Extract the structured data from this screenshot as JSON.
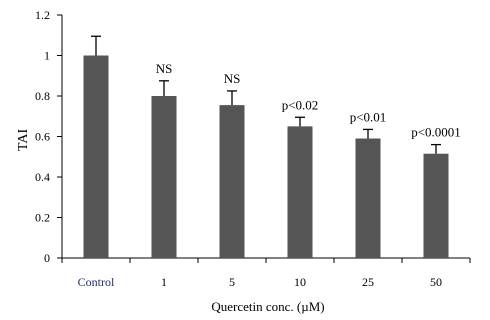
{
  "chart_data": {
    "type": "bar",
    "title": "",
    "xlabel": "Quercetin conc. (µM)",
    "ylabel": "TAI",
    "ylim": [
      0,
      1.2
    ],
    "yticks": [
      0,
      0.2,
      0.4,
      0.6,
      0.8,
      1,
      1.2
    ],
    "ytick_labels": [
      "0",
      "0.2",
      "0.4",
      "0.6",
      "0.8",
      "1",
      "1.2"
    ],
    "categories": [
      "Control",
      "1",
      "5",
      "10",
      "25",
      "50"
    ],
    "values": [
      1.0,
      0.8,
      0.755,
      0.65,
      0.59,
      0.515
    ],
    "errors": [
      0.095,
      0.075,
      0.07,
      0.045,
      0.045,
      0.045
    ],
    "annotations": [
      "",
      "NS",
      "NS",
      "p<0.02",
      "p<0.01",
      "p<0.0001"
    ],
    "grid": false,
    "colors": {
      "bar": "#555555",
      "axis": "#000000",
      "control_label": "#1f2a6b"
    }
  }
}
